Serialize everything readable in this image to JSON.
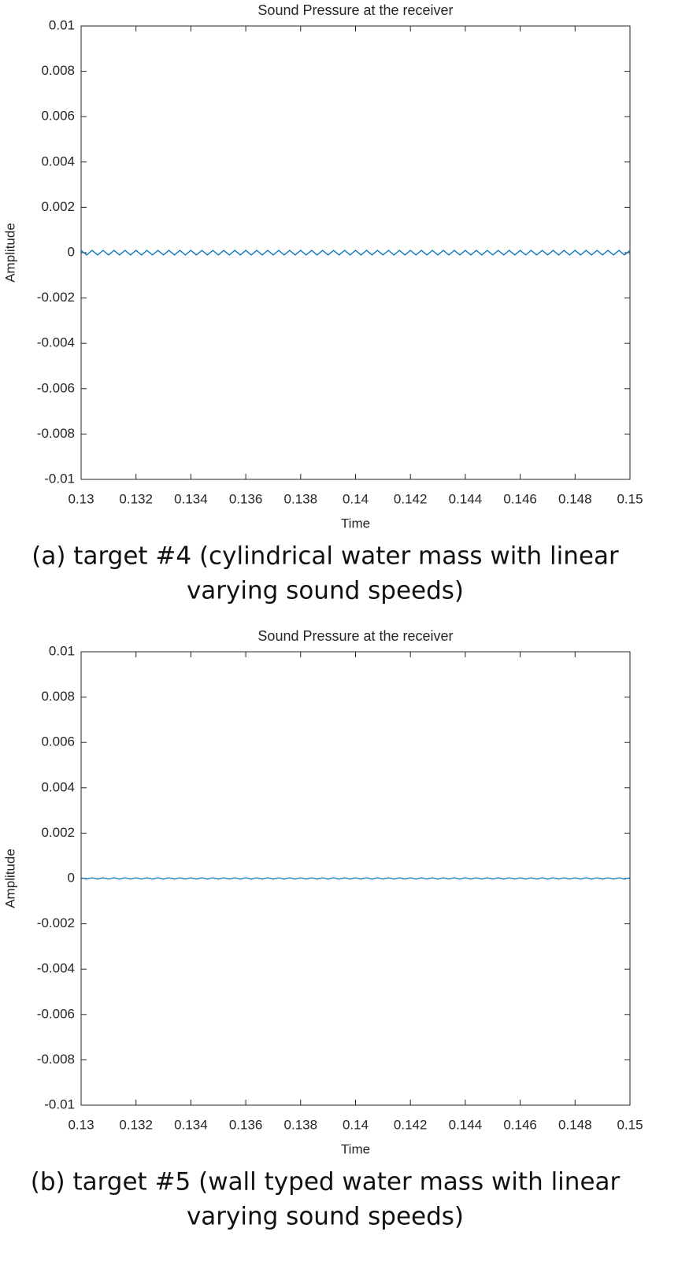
{
  "chart_data": [
    {
      "type": "line",
      "title": "Sound Pressure at the receiver",
      "xlabel": "Time",
      "ylabel": "Amplitude",
      "caption": [
        "(a) target #4 (cylindrical water mass with linear",
        "varying sound speeds)"
      ],
      "x": [
        0.13,
        0.1302,
        0.1304,
        0.1306,
        0.1308,
        0.131,
        0.1312,
        0.1314,
        0.1316,
        0.1318,
        0.132,
        0.1322,
        0.1324,
        0.1326,
        0.1328,
        0.133,
        0.1332,
        0.1334,
        0.1336,
        0.1338,
        0.134,
        0.1342,
        0.1344,
        0.1346,
        0.1348,
        0.135,
        0.1352,
        0.1354,
        0.1356,
        0.1358,
        0.136,
        0.1362,
        0.1364,
        0.1366,
        0.1368,
        0.137,
        0.1372,
        0.1374,
        0.1376,
        0.1378,
        0.138,
        0.1382,
        0.1384,
        0.1386,
        0.1388,
        0.139,
        0.1392,
        0.1394,
        0.1396,
        0.1398,
        0.14,
        0.1402,
        0.1404,
        0.1406,
        0.1408,
        0.141,
        0.1412,
        0.1414,
        0.1416,
        0.1418,
        0.142,
        0.1422,
        0.1424,
        0.1426,
        0.1428,
        0.143,
        0.1432,
        0.1434,
        0.1436,
        0.1438,
        0.144,
        0.1442,
        0.1444,
        0.1446,
        0.1448,
        0.145,
        0.1452,
        0.1454,
        0.1456,
        0.1458,
        0.146,
        0.1462,
        0.1464,
        0.1466,
        0.1468,
        0.147,
        0.1472,
        0.1474,
        0.1476,
        0.1478,
        0.148,
        0.1482,
        0.1484,
        0.1486,
        0.1488,
        0.149,
        0.1492,
        0.1494,
        0.1496,
        0.1498,
        0.15
      ],
      "series": [
        {
          "color": "#0072bd",
          "values": [
            0.0001,
            -0.0001,
            0.0001,
            -0.0001,
            0.0001,
            -0.0001,
            0.0001,
            -0.0001,
            0.0001,
            -0.0001,
            0.0001,
            -0.0001,
            0.0001,
            -0.0001,
            0.0001,
            -0.0001,
            0.0001,
            -0.0001,
            0.0001,
            -0.0001,
            0.0001,
            -0.0001,
            0.0001,
            -0.0001,
            0.0001,
            -0.0001,
            0.0001,
            -0.0001,
            0.0001,
            -0.0001,
            0.0001,
            -0.0001,
            0.0001,
            -0.0001,
            0.0001,
            -0.0001,
            0.0001,
            -0.0001,
            0.0001,
            -0.0001,
            0.0001,
            -0.0001,
            0.0001,
            -0.0001,
            0.0001,
            -0.0001,
            0.0001,
            -0.0001,
            0.0001,
            -0.0001,
            0.0001,
            -0.0001,
            0.0001,
            -0.0001,
            0.0001,
            -0.0001,
            0.0001,
            -0.0001,
            0.0001,
            -0.0001,
            0.0001,
            -0.0001,
            0.0001,
            -0.0001,
            0.0001,
            -0.0001,
            0.0001,
            -0.0001,
            0.0001,
            -0.0001,
            0.0001,
            -0.0001,
            0.0001,
            -0.0001,
            0.0001,
            -0.0001,
            0.0001,
            -0.0001,
            0.0001,
            -0.0001,
            0.0001,
            -0.0001,
            0.0001,
            -0.0001,
            0.0001,
            -0.0001,
            0.0001,
            -0.0001,
            0.0001,
            -0.0001,
            0.0001,
            -0.0001,
            0.0001,
            -0.0001,
            0.0001,
            -0.0001,
            0.0001,
            -0.0001,
            0.0001,
            -0.0001,
            0.0001
          ]
        }
      ],
      "xlim": [
        0.13,
        0.15
      ],
      "xticks": [
        0.13,
        0.132,
        0.134,
        0.136,
        0.138,
        0.14,
        0.142,
        0.144,
        0.146,
        0.148,
        0.15
      ],
      "ylim": [
        -0.01,
        0.01
      ],
      "yticks": [
        -0.01,
        -0.008,
        -0.006,
        -0.004,
        -0.002,
        0,
        0.002,
        0.004,
        0.006,
        0.008,
        0.01
      ],
      "grid": false
    },
    {
      "type": "line",
      "title": "Sound Pressure at the receiver",
      "xlabel": "Time",
      "ylabel": "Amplitude",
      "caption": [
        "(b) target #5 (wall typed water mass with linear",
        "varying sound speeds)"
      ],
      "x": [
        0.13,
        0.1302,
        0.1304,
        0.1306,
        0.1308,
        0.131,
        0.1312,
        0.1314,
        0.1316,
        0.1318,
        0.132,
        0.1322,
        0.1324,
        0.1326,
        0.1328,
        0.133,
        0.1332,
        0.1334,
        0.1336,
        0.1338,
        0.134,
        0.1342,
        0.1344,
        0.1346,
        0.1348,
        0.135,
        0.1352,
        0.1354,
        0.1356,
        0.1358,
        0.136,
        0.1362,
        0.1364,
        0.1366,
        0.1368,
        0.137,
        0.1372,
        0.1374,
        0.1376,
        0.1378,
        0.138,
        0.1382,
        0.1384,
        0.1386,
        0.1388,
        0.139,
        0.1392,
        0.1394,
        0.1396,
        0.1398,
        0.14,
        0.1402,
        0.1404,
        0.1406,
        0.1408,
        0.141,
        0.1412,
        0.1414,
        0.1416,
        0.1418,
        0.142,
        0.1422,
        0.1424,
        0.1426,
        0.1428,
        0.143,
        0.1432,
        0.1434,
        0.1436,
        0.1438,
        0.144,
        0.1442,
        0.1444,
        0.1446,
        0.1448,
        0.145,
        0.1452,
        0.1454,
        0.1456,
        0.1458,
        0.146,
        0.1462,
        0.1464,
        0.1466,
        0.1468,
        0.147,
        0.1472,
        0.1474,
        0.1476,
        0.1478,
        0.148,
        0.1482,
        0.1484,
        0.1486,
        0.1488,
        0.149,
        0.1492,
        0.1494,
        0.1496,
        0.1498,
        0.15
      ],
      "series": [
        {
          "color": "#0072bd",
          "values": [
            3e-05,
            -3e-05,
            3e-05,
            -3e-05,
            3e-05,
            -3e-05,
            3e-05,
            -3e-05,
            3e-05,
            -3e-05,
            3e-05,
            -3e-05,
            3e-05,
            -3e-05,
            3e-05,
            -3e-05,
            3e-05,
            -3e-05,
            3e-05,
            -3e-05,
            3e-05,
            -3e-05,
            3e-05,
            -3e-05,
            3e-05,
            -3e-05,
            3e-05,
            -3e-05,
            3e-05,
            -3e-05,
            3e-05,
            -3e-05,
            3e-05,
            -3e-05,
            3e-05,
            -3e-05,
            3e-05,
            -3e-05,
            3e-05,
            -3e-05,
            3e-05,
            -3e-05,
            3e-05,
            -3e-05,
            3e-05,
            -3e-05,
            3e-05,
            -3e-05,
            3e-05,
            -3e-05,
            3e-05,
            -3e-05,
            3e-05,
            -3e-05,
            3e-05,
            -3e-05,
            3e-05,
            -3e-05,
            3e-05,
            -3e-05,
            3e-05,
            -3e-05,
            3e-05,
            -3e-05,
            3e-05,
            -3e-05,
            3e-05,
            -3e-05,
            3e-05,
            -3e-05,
            3e-05,
            -3e-05,
            3e-05,
            -3e-05,
            3e-05,
            -3e-05,
            3e-05,
            -3e-05,
            3e-05,
            -3e-05,
            3e-05,
            -3e-05,
            3e-05,
            -3e-05,
            3e-05,
            -3e-05,
            3e-05,
            -3e-05,
            3e-05,
            -3e-05,
            3e-05,
            -3e-05,
            3e-05,
            -3e-05,
            3e-05,
            -3e-05,
            3e-05,
            -3e-05,
            3e-05,
            -3e-05,
            3e-05
          ]
        }
      ],
      "xlim": [
        0.13,
        0.15
      ],
      "xticks": [
        0.13,
        0.132,
        0.134,
        0.136,
        0.138,
        0.14,
        0.142,
        0.144,
        0.146,
        0.148,
        0.15
      ],
      "ylim": [
        -0.01,
        0.01
      ],
      "yticks": [
        -0.01,
        -0.008,
        -0.006,
        -0.004,
        -0.002,
        0,
        0.002,
        0.004,
        0.006,
        0.008,
        0.01
      ],
      "grid": false
    }
  ]
}
